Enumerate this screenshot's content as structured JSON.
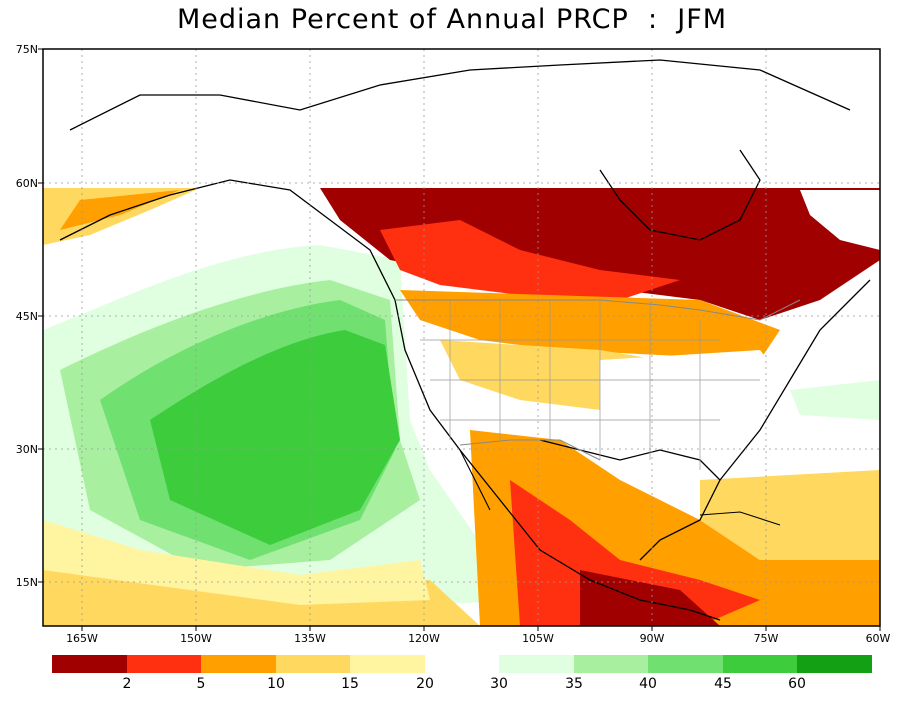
{
  "title": "Median Percent of Annual PRCP  :  JFM",
  "lat_labels": [
    "75N",
    "60N",
    "45N",
    "30N",
    "15N"
  ],
  "lon_labels": [
    "165W",
    "150W",
    "135W",
    "120W",
    "105W",
    "90W",
    "75W",
    "60W"
  ],
  "legend": {
    "low": [
      {
        "color": "#a00000"
      },
      {
        "color": "#ff3010"
      },
      {
        "color": "#ff9f00"
      },
      {
        "color": "#ffd860"
      },
      {
        "color": "#fff4a0"
      }
    ],
    "high": [
      {
        "color": "#e0ffe0"
      },
      {
        "color": "#a8f0a0"
      },
      {
        "color": "#70e070"
      },
      {
        "color": "#3ccc3c"
      },
      {
        "color": "#14a014"
      }
    ],
    "labels": [
      "2",
      "5",
      "10",
      "15",
      "20",
      "30",
      "35",
      "40",
      "45",
      "60"
    ]
  },
  "colors": {
    "land_unshaded": "#ffffff",
    "ocean_dry": "#ffd860",
    "ocean_wet": "#3ccc3c"
  }
}
